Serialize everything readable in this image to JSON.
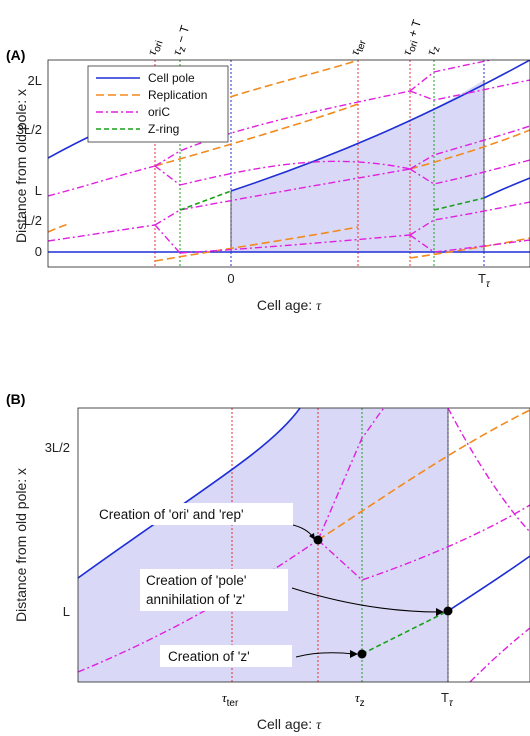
{
  "figure": {
    "panel_a_label": "(A)",
    "panel_b_label": "(B)",
    "x_axis_title_prefix": "Cell age: ",
    "x_axis_title_symbol": "τ",
    "y_axis_title": "Distance from old pole: x"
  },
  "panel_a": {
    "y_ticks": [
      "0",
      "L/2",
      "L",
      "3L/2",
      "2L"
    ],
    "x_ticks": [
      {
        "main": "0"
      },
      {
        "main": "T",
        "sub": "τ"
      }
    ],
    "top_labels": [
      {
        "sym": "τ",
        "sub": "ori"
      },
      {
        "sym": "τ",
        "sub": "z",
        "extra": " − T"
      },
      {
        "sym": "τ",
        "sub": "ter"
      },
      {
        "sym": "τ",
        "sub": "ori",
        "extra": " + T"
      },
      {
        "sym": "τ",
        "sub": "z"
      }
    ],
    "legend": [
      {
        "label": "Cell pole",
        "color": "#1f2fd6",
        "dash": "solid"
      },
      {
        "label": "Replication",
        "color": "#f28a1e",
        "dash": "dashed"
      },
      {
        "label": "oriC",
        "color": "#e020e0",
        "dash": "dashdot"
      },
      {
        "label": "Z-ring",
        "color": "#1aa01a",
        "dash": "dashed"
      }
    ]
  },
  "panel_b": {
    "y_ticks": [
      "L",
      "3L/2"
    ],
    "x_ticks": [
      {
        "sym": "τ",
        "sub": "ter"
      },
      {
        "sym": "τ",
        "sub": "z"
      },
      {
        "main": "T",
        "sub": "τ"
      }
    ],
    "annotations": {
      "ori_rep": "Creation of 'ori' and 'rep'",
      "pole_line1": "Creation of 'pole'",
      "pole_line2": "annihilation of 'z'",
      "z": "Creation of 'z'"
    }
  },
  "colors": {
    "pole": "#1f2fd6",
    "replication": "#f28a1e",
    "oric": "#e020e0",
    "zring": "#1aa01a",
    "shade": "#d9d9f7"
  }
}
